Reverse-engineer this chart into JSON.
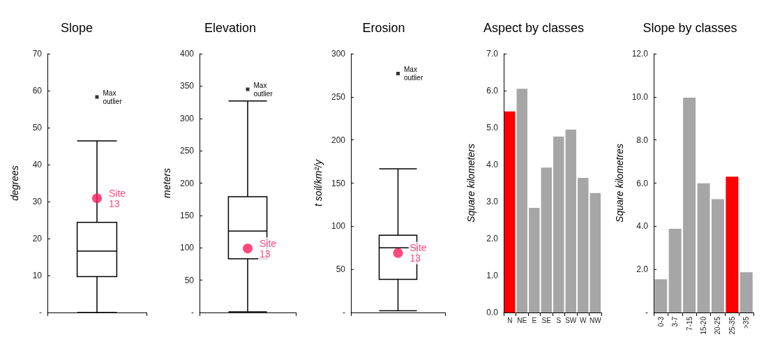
{
  "chart_data": [
    {
      "type": "box",
      "title": "Slope",
      "ylabel": "degrees",
      "categories": [
        null
      ],
      "ylim": [
        0,
        70
      ],
      "yticks": [
        {
          "value": 0,
          "label": "-"
        },
        10,
        20,
        30,
        40,
        50,
        60,
        70
      ],
      "grid": false,
      "legend": false,
      "series": [
        {
          "type": "box",
          "color": "#000000",
          "boxes": [
            {
              "low": 0,
              "q1": 9.7,
              "median": 16.6,
              "q3": 24.4,
              "high": 46.4,
              "outliers": [
                58.3
              ]
            }
          ]
        },
        {
          "type": "scatter",
          "name": "Site 13",
          "color": "#ff1a5e",
          "marker": "circle",
          "values": [
            30.9
          ]
        }
      ],
      "annotations": [
        "Max outlier"
      ]
    },
    {
      "type": "box",
      "title": "Elevation",
      "ylabel": "meters",
      "categories": [
        null
      ],
      "ylim": [
        0,
        400
      ],
      "yticks": [
        {
          "value": 0,
          "label": "-"
        },
        50,
        100,
        150,
        200,
        250,
        300,
        350,
        400
      ],
      "grid": false,
      "legend": false,
      "series": [
        {
          "type": "box",
          "color": "#000000",
          "boxes": [
            {
              "low": 1,
              "q1": 83,
              "median": 126,
              "q3": 179,
              "high": 327,
              "outliers": [
                345
              ]
            }
          ]
        },
        {
          "type": "scatter",
          "name": "Site 13",
          "color": "#ff1a5e",
          "marker": "circle",
          "values": [
            99
          ]
        }
      ],
      "annotations": [
        "Max outlier"
      ]
    },
    {
      "type": "box",
      "title": "Erosion",
      "ylabel": "t soil/km²/y",
      "categories": [
        null
      ],
      "ylim": [
        0,
        300
      ],
      "yticks": [
        {
          "value": 0,
          "label": "-"
        },
        50,
        100,
        150,
        200,
        250,
        300
      ],
      "grid": false,
      "legend": false,
      "series": [
        {
          "type": "box",
          "color": "#000000",
          "boxes": [
            {
              "low": 2,
              "q1": 38.5,
              "median": 75,
              "q3": 89.5,
              "high": 166.6,
              "outliers": [
                277
              ]
            }
          ]
        },
        {
          "type": "scatter",
          "name": "Site 13",
          "color": "#ff1a5e",
          "marker": "circle",
          "values": [
            69
          ]
        }
      ],
      "annotations": [
        "Max outlier"
      ]
    },
    {
      "type": "bar",
      "title": "Aspect by classes",
      "ylabel": "Square kilometers",
      "categories": [
        "N",
        "NE",
        "E",
        "SE",
        "S",
        "SW",
        "W",
        "NW"
      ],
      "ylim": [
        0,
        7
      ],
      "yticks": [
        {
          "value": 0,
          "label": "0.0"
        },
        {
          "value": 1,
          "label": "1.0"
        },
        {
          "value": 2,
          "label": "2.0"
        },
        {
          "value": 3,
          "label": "3.0"
        },
        {
          "value": 4,
          "label": "4.0"
        },
        {
          "value": 5,
          "label": "5.0"
        },
        {
          "value": 6,
          "label": "6.0"
        },
        {
          "value": 7,
          "label": "7.0"
        }
      ],
      "grid": false,
      "legend": false,
      "values": [
        5.44,
        6.05,
        2.83,
        3.92,
        4.76,
        4.95,
        3.64,
        3.23
      ],
      "colors": [
        "#ff0000",
        "#a6a6a6",
        "#a6a6a6",
        "#a6a6a6",
        "#a6a6a6",
        "#a6a6a6",
        "#a6a6a6",
        "#a6a6a6"
      ]
    },
    {
      "type": "bar",
      "title": "Slope by classes",
      "ylabel": "Square kilometres",
      "categories": [
        "0-3",
        "3-7",
        "7-15",
        "15-20",
        "20-25",
        "25-35",
        ">35"
      ],
      "ylim": [
        0,
        12
      ],
      "yticks": [
        {
          "value": 0,
          "label": "-"
        },
        {
          "value": 2,
          "label": "2.0"
        },
        {
          "value": 4,
          "label": "4.0"
        },
        {
          "value": 6,
          "label": "6.0"
        },
        {
          "value": 8,
          "label": "8.0"
        },
        {
          "value": 10,
          "label": "10.0"
        },
        {
          "value": 12,
          "label": "12.0"
        }
      ],
      "grid": false,
      "legend": false,
      "values": [
        1.54,
        3.88,
        9.96,
        5.99,
        5.26,
        6.3,
        1.87
      ],
      "colors": [
        "#a6a6a6",
        "#a6a6a6",
        "#a6a6a6",
        "#a6a6a6",
        "#a6a6a6",
        "#ff0000",
        "#a6a6a6"
      ]
    }
  ]
}
